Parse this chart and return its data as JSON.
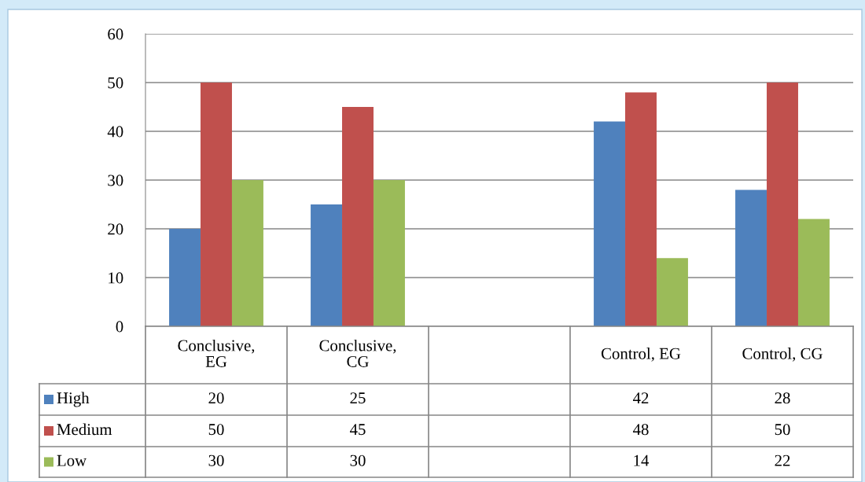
{
  "chart_data": {
    "type": "bar",
    "categories": [
      "Conclusive,\nEG",
      "Conclusive,\nCG",
      null,
      "Control, EG",
      "Control, CG"
    ],
    "series": [
      {
        "name": "High",
        "color": "#4f81bd",
        "values": [
          20,
          25,
          null,
          42,
          28
        ]
      },
      {
        "name": "Medium",
        "color": "#c0504d",
        "values": [
          50,
          45,
          null,
          48,
          50
        ]
      },
      {
        "name": "Low",
        "color": "#9bbb59",
        "values": [
          30,
          30,
          null,
          14,
          22
        ]
      }
    ],
    "ylim": [
      0,
      60
    ],
    "yticks": [
      0,
      10,
      20,
      30,
      40,
      50,
      60
    ],
    "grid": "y",
    "legend": "bottom",
    "data_labels": true
  }
}
